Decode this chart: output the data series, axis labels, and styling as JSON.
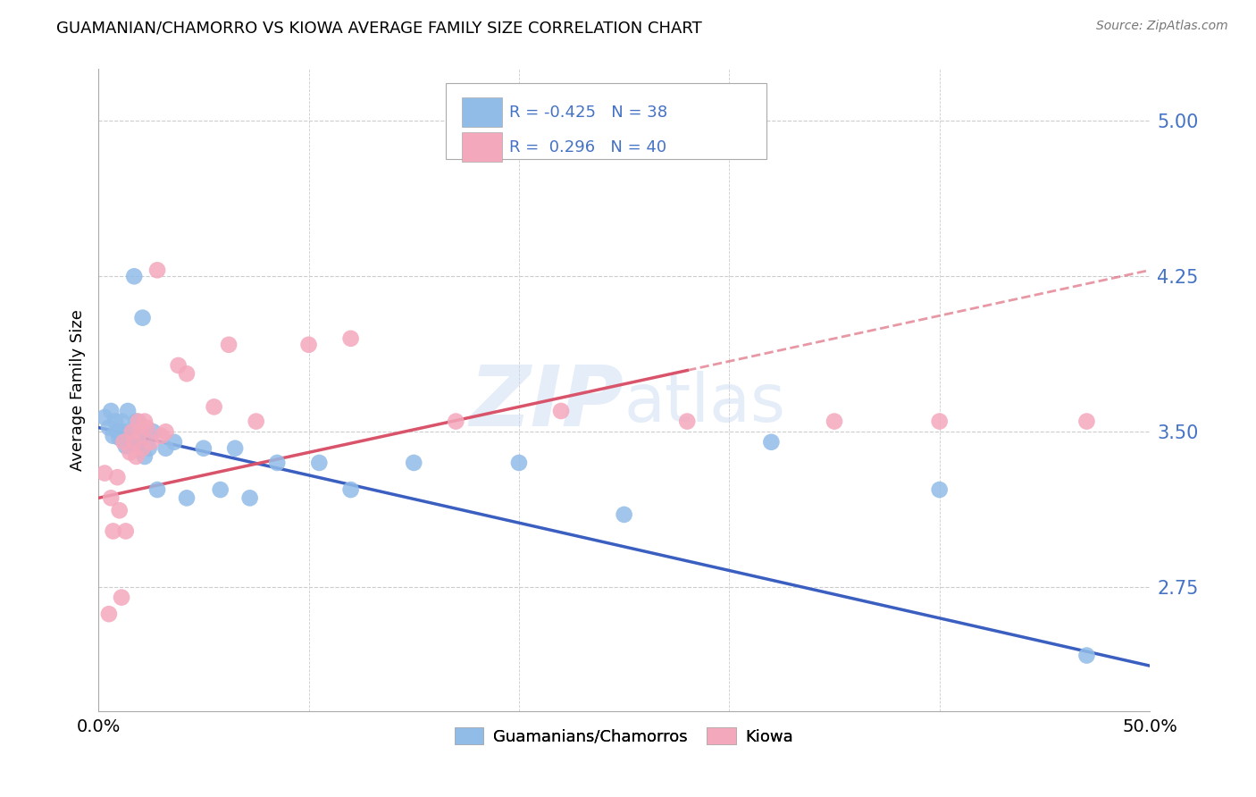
{
  "title": "GUAMANIAN/CHAMORRO VS KIOWA AVERAGE FAMILY SIZE CORRELATION CHART",
  "source": "Source: ZipAtlas.com",
  "ylabel": "Average Family Size",
  "ytick_values": [
    2.75,
    3.5,
    4.25,
    5.0
  ],
  "ytick_labels": [
    "2.75",
    "3.50",
    "4.25",
    "5.00"
  ],
  "xtick_values": [
    0,
    50
  ],
  "xtick_labels": [
    "0.0%",
    "50.0%"
  ],
  "watermark_zip": "ZIP",
  "watermark_atlas": "atlas",
  "xlim": [
    0,
    50
  ],
  "ylim_bottom": 2.15,
  "ylim_top": 5.25,
  "blue_scatter_color": "#92BCE8",
  "pink_scatter_color": "#F4A8BC",
  "blue_line_color": "#3B5FC0",
  "pink_line_color": "#D9546A",
  "right_axis_color": "#4472C4",
  "legend_label_blue": "Guamanians/Chamorros",
  "legend_label_pink": "Kiowa",
  "blue_intercept": 3.52,
  "blue_slope": -0.023,
  "pink_intercept": 3.18,
  "pink_slope": 0.022,
  "blue_x": [
    0.3,
    0.5,
    0.6,
    0.7,
    0.8,
    0.9,
    1.0,
    1.1,
    1.2,
    1.3,
    1.4,
    1.5,
    1.6,
    1.7,
    1.8,
    1.9,
    2.0,
    2.1,
    2.2,
    2.4,
    2.6,
    2.8,
    3.2,
    3.6,
    4.2,
    5.0,
    5.8,
    6.5,
    7.2,
    8.5,
    10.5,
    12.0,
    15.0,
    20.0,
    25.0,
    32.0,
    40.0,
    47.0
  ],
  "blue_y": [
    3.57,
    3.52,
    3.6,
    3.48,
    3.55,
    3.5,
    3.47,
    3.55,
    3.5,
    3.43,
    3.6,
    3.5,
    3.45,
    4.25,
    3.55,
    3.45,
    3.5,
    4.05,
    3.38,
    3.42,
    3.5,
    3.22,
    3.42,
    3.45,
    3.18,
    3.42,
    3.22,
    3.42,
    3.18,
    3.35,
    3.35,
    3.22,
    3.35,
    3.35,
    3.1,
    3.45,
    3.22,
    2.42
  ],
  "pink_x": [
    0.3,
    0.5,
    0.6,
    0.7,
    0.9,
    1.0,
    1.1,
    1.2,
    1.3,
    1.5,
    1.6,
    1.7,
    1.8,
    1.9,
    2.0,
    2.1,
    2.2,
    2.3,
    2.5,
    2.8,
    3.0,
    3.2,
    3.8,
    4.2,
    5.5,
    6.2,
    7.5,
    10.0,
    12.0,
    17.0,
    22.0,
    28.0,
    35.0,
    40.0,
    47.0
  ],
  "pink_y": [
    3.3,
    2.62,
    3.18,
    3.02,
    3.28,
    3.12,
    2.7,
    3.45,
    3.02,
    3.4,
    3.5,
    3.45,
    3.38,
    3.55,
    3.5,
    3.42,
    3.55,
    3.52,
    3.45,
    4.28,
    3.48,
    3.5,
    3.82,
    3.78,
    3.62,
    3.92,
    3.55,
    3.92,
    3.95,
    3.55,
    3.6,
    3.55,
    3.55,
    3.55,
    3.55
  ]
}
